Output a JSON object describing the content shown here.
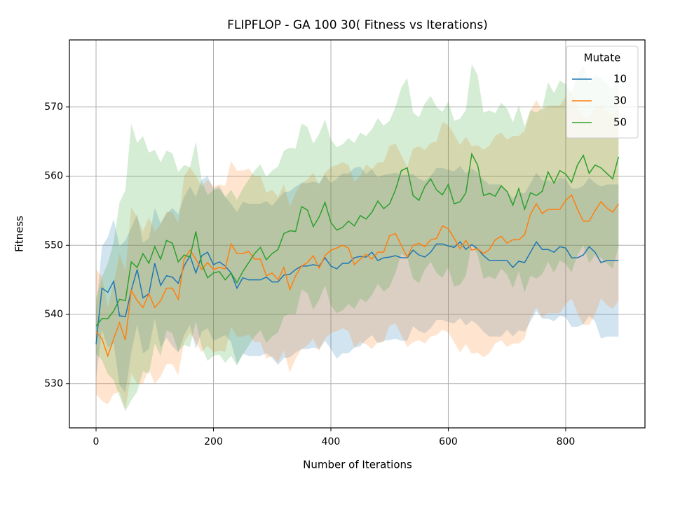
{
  "chart_data": {
    "type": "line",
    "title": "FLIPFLOP - GA 100 30( Fitness vs Iterations)",
    "x_label": "Number of Iterations",
    "y_label": "Fitness",
    "xlim": [
      -45.4,
      935
    ],
    "ylim": [
      523.6,
      579.7
    ],
    "xticks": [
      0,
      200,
      400,
      600,
      800
    ],
    "yticks": [
      530,
      540,
      550,
      560,
      570
    ],
    "grid": true,
    "legend_title": "Mutate",
    "legend_position": "upper-right",
    "x": [
      0,
      10,
      20,
      30,
      40,
      50,
      60,
      70,
      80,
      90,
      100,
      110,
      120,
      130,
      140,
      150,
      160,
      170,
      180,
      190,
      200,
      210,
      220,
      230,
      240,
      250,
      260,
      270,
      280,
      290,
      300,
      310,
      320,
      330,
      340,
      350,
      360,
      370,
      380,
      390,
      400,
      410,
      420,
      430,
      440,
      450,
      460,
      470,
      480,
      490,
      500,
      510,
      520,
      530,
      540,
      550,
      560,
      570,
      580,
      590,
      600,
      610,
      620,
      630,
      640,
      650,
      660,
      670,
      680,
      690,
      700,
      710,
      720,
      730,
      740,
      750,
      760,
      770,
      780,
      790,
      800,
      810,
      820,
      830,
      840,
      850,
      860,
      870,
      880,
      890
    ],
    "series": [
      {
        "name": "10",
        "color": "#1f77b4",
        "values": [
          535.7,
          543.8,
          543.2,
          544.8,
          539.8,
          539.7,
          543.5,
          546.5,
          542.4,
          543,
          547.4,
          544.2,
          545.6,
          545.4,
          544.5,
          547,
          548.5,
          546,
          548.5,
          549,
          547.2,
          547.6,
          547,
          546,
          543.8,
          545.3,
          545,
          545,
          545,
          545.4,
          544.7,
          544.7,
          545.7,
          545.8,
          546.5,
          547,
          547,
          547.2,
          547,
          548.2,
          547,
          546.6,
          547.4,
          547.4,
          548.2,
          548.4,
          548.3,
          549,
          547.8,
          548.2,
          548.3,
          548.5,
          548.2,
          548.2,
          549.3,
          548.6,
          548.3,
          549,
          550.2,
          550.2,
          549.9,
          549.7,
          550.5,
          549.4,
          550.1,
          549.5,
          548.5,
          547.8,
          547.8,
          547.8,
          547.8,
          546.8,
          547.7,
          547.5,
          549,
          550.5,
          549.4,
          549.4,
          549,
          549.8,
          549.6,
          548.2,
          548.2,
          548.6,
          549.8,
          549,
          547.5,
          547.8,
          547.8,
          547.8
        ],
        "std": [
          5,
          6,
          8,
          9,
          10,
          11,
          9,
          8,
          8,
          8,
          8,
          9,
          9,
          10,
          10,
          10,
          10,
          11,
          11,
          11,
          11,
          11,
          10,
          10,
          11,
          11,
          11,
          11,
          11,
          11,
          11,
          12,
          12,
          12,
          12,
          12,
          12,
          12,
          12,
          12,
          12,
          13,
          13,
          13,
          13,
          13,
          12,
          12,
          12,
          12,
          12,
          12,
          12,
          12,
          11,
          11,
          11,
          11,
          11,
          11,
          11,
          11,
          11,
          11,
          11,
          11,
          11,
          11,
          11,
          11,
          10,
          10,
          10,
          10,
          10,
          10,
          10,
          10,
          10,
          10,
          10,
          10,
          10,
          10,
          10,
          10,
          11,
          11,
          11,
          11
        ]
      },
      {
        "name": "30",
        "color": "#ff7f0e",
        "values": [
          537.5,
          536.5,
          534,
          536.5,
          538.8,
          536.3,
          543.5,
          542,
          541,
          543,
          541,
          542,
          543.8,
          543.8,
          542.2,
          548,
          549.3,
          548,
          546.5,
          547.5,
          546.5,
          546.8,
          546.6,
          550.2,
          548.8,
          548.8,
          549.1,
          548,
          548,
          545.6,
          546,
          545,
          546.8,
          543.6,
          545.6,
          547,
          547.5,
          548.5,
          546.7,
          548.5,
          549.3,
          549.6,
          550,
          549.6,
          547.2,
          548,
          548.7,
          548,
          549,
          549,
          551.4,
          551.7,
          550,
          548.3,
          550,
          550.3,
          549.8,
          550.8,
          551,
          552.8,
          552.4,
          551,
          549.5,
          550.7,
          549.3,
          549.5,
          548.8,
          549.4,
          550.8,
          551.3,
          550.3,
          550.8,
          550.8,
          551.5,
          554.5,
          556,
          554.6,
          555.2,
          555.2,
          555.2,
          556.5,
          557.3,
          555.2,
          553.5,
          553.5,
          555,
          556.3,
          555.4,
          554.8,
          556
        ],
        "std": [
          9,
          9,
          7,
          8,
          10,
          10,
          12,
          12,
          11,
          11,
          11,
          11,
          11,
          11,
          11,
          12,
          12,
          12,
          12,
          12,
          12,
          12,
          12,
          12,
          12,
          12,
          12,
          12,
          12,
          12,
          12,
          12,
          12,
          12,
          12,
          12,
          12,
          12,
          12,
          12,
          12,
          12,
          12,
          12,
          12,
          12,
          13,
          13,
          13,
          13,
          13,
          13,
          13,
          13,
          14,
          14,
          14,
          14,
          14,
          15,
          15,
          15,
          15,
          15,
          15,
          15,
          15,
          15,
          15,
          15,
          15,
          15,
          15,
          15,
          15,
          15,
          15,
          15,
          15,
          15,
          15,
          15,
          15,
          15,
          15,
          15,
          14,
          14,
          14,
          14
        ]
      },
      {
        "name": "50",
        "color": "#2ca02c",
        "values": [
          538.3,
          539.4,
          539.4,
          540.5,
          542.2,
          542,
          547.6,
          546.8,
          548.8,
          547.4,
          549.8,
          548,
          550.7,
          550.3,
          547.6,
          548.6,
          548.3,
          552,
          547.3,
          545.3,
          546,
          546.2,
          545,
          546,
          544.6,
          546.2,
          547.5,
          548.8,
          549.7,
          547.9,
          548.8,
          549.4,
          551.7,
          552.1,
          552,
          555.6,
          555.1,
          552.7,
          554.1,
          556.2,
          553.3,
          552.2,
          552.6,
          553.5,
          552.8,
          554.3,
          553.8,
          554.8,
          556.4,
          555.3,
          556,
          558,
          560.8,
          561.2,
          557.2,
          556.5,
          558.5,
          559.6,
          558,
          557.3,
          558.8,
          556,
          556.3,
          557.6,
          563.2,
          561.6,
          557.2,
          557.5,
          557.1,
          558.6,
          557.8,
          555.8,
          558.2,
          555.2,
          557.6,
          557.2,
          557.8,
          560.6,
          559,
          560.8,
          560.3,
          559.1,
          561.6,
          563,
          560.4,
          561.6,
          561.2,
          560.4,
          559.6,
          562.8
        ],
        "std": [
          4,
          6,
          8,
          10,
          14,
          16,
          20,
          18,
          17,
          16,
          14,
          14,
          13,
          13,
          13,
          13,
          13,
          13,
          12,
          12,
          12,
          12,
          12,
          12,
          12,
          12,
          12,
          12,
          12,
          12,
          12,
          12,
          12,
          12,
          12,
          12,
          12,
          12,
          12,
          12,
          12,
          12,
          12,
          12,
          12,
          12,
          12,
          12,
          12,
          12,
          12,
          12,
          12,
          13,
          12,
          12,
          12,
          12,
          12,
          12,
          12,
          12,
          12,
          12,
          13,
          13,
          12,
          12,
          12,
          12,
          12,
          12,
          12,
          12,
          12,
          12,
          12,
          13,
          13,
          13,
          13,
          13,
          13,
          13,
          13,
          13,
          13,
          13,
          13,
          13
        ]
      }
    ]
  }
}
